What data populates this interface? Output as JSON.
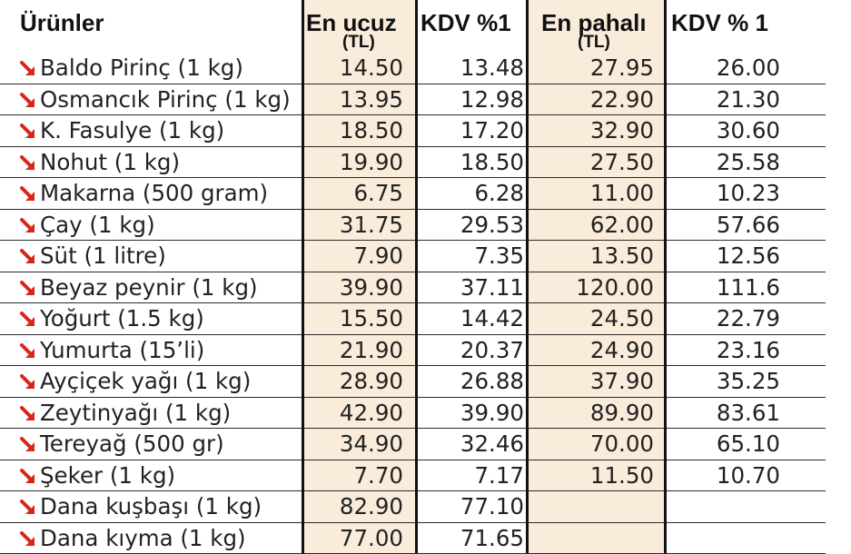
{
  "headers": {
    "product": "Ürünler",
    "cheapest": "En ucuz",
    "cheapest_unit": "(TL)",
    "vat1": "KDV %1",
    "expensive": "En pahalı",
    "expensive_unit": "(TL)",
    "vat2": "KDV % 1"
  },
  "arrow_color": "#d9261c",
  "rows": [
    {
      "name": "Baldo Pirinç (1 kg)",
      "cheap": "14.50",
      "cheap_vat": "13.48",
      "exp": "27.95",
      "exp_vat": "26.00"
    },
    {
      "name": "Osmancık Pirinç (1 kg)",
      "cheap": "13.95",
      "cheap_vat": "12.98",
      "exp": "22.90",
      "exp_vat": "21.30"
    },
    {
      "name": "K. Fasulye (1 kg)",
      "cheap": "18.50",
      "cheap_vat": "17.20",
      "exp": "32.90",
      "exp_vat": "30.60"
    },
    {
      "name": "Nohut (1 kg)",
      "cheap": "19.90",
      "cheap_vat": "18.50",
      "exp": "27.50",
      "exp_vat": "25.58"
    },
    {
      "name": "Makarna (500 gram)",
      "cheap": "6.75",
      "cheap_vat": "6.28",
      "exp": "11.00",
      "exp_vat": "10.23"
    },
    {
      "name": "Çay (1 kg)",
      "cheap": "31.75",
      "cheap_vat": "29.53",
      "exp": "62.00",
      "exp_vat": "57.66"
    },
    {
      "name": "Süt (1 litre)",
      "cheap": "7.90",
      "cheap_vat": "7.35",
      "exp": "13.50",
      "exp_vat": "12.56"
    },
    {
      "name": "Beyaz peynir (1 kg)",
      "cheap": "39.90",
      "cheap_vat": "37.11",
      "exp": "120.00",
      "exp_vat": "111.6"
    },
    {
      "name": "Yoğurt (1.5 kg)",
      "cheap": "15.50",
      "cheap_vat": "14.42",
      "exp": "24.50",
      "exp_vat": "22.79"
    },
    {
      "name": "Yumurta (15’li)",
      "cheap": "21.90",
      "cheap_vat": "20.37",
      "exp": "24.90",
      "exp_vat": "23.16"
    },
    {
      "name": "Ayçiçek yağı (1 kg)",
      "cheap": "28.90",
      "cheap_vat": "26.88",
      "exp": "37.90",
      "exp_vat": "35.25"
    },
    {
      "name": "Zeytinyağı (1 kg)",
      "cheap": "42.90",
      "cheap_vat": "39.90",
      "exp": "89.90",
      "exp_vat": "83.61"
    },
    {
      "name": "Tereyağ (500 gr)",
      "cheap": "34.90",
      "cheap_vat": "32.46",
      "exp": "70.00",
      "exp_vat": "65.10"
    },
    {
      "name": "Şeker (1 kg)",
      "cheap": "7.70",
      "cheap_vat": "7.17",
      "exp": "11.50",
      "exp_vat": "10.70"
    },
    {
      "name": "Dana kuşbaşı (1 kg)",
      "cheap": "82.90",
      "cheap_vat": "77.10",
      "exp": "",
      "exp_vat": ""
    },
    {
      "name": "Dana kıyma (1 kg)",
      "cheap": "77.00",
      "cheap_vat": "71.65",
      "exp": "",
      "exp_vat": ""
    }
  ]
}
